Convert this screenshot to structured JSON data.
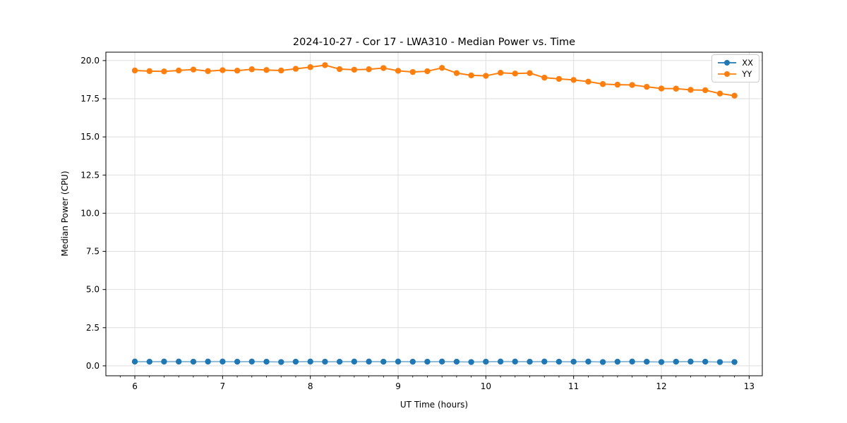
{
  "chart_data": {
    "type": "line",
    "title": "2024-10-27 - Cor 17 - LWA310 - Median Power vs. Time",
    "xlabel": "UT Time (hours)",
    "ylabel": "Median Power (CPU)",
    "xlim": [
      5.67,
      13.15
    ],
    "ylim": [
      -0.65,
      20.55
    ],
    "xticks": [
      6,
      7,
      8,
      9,
      10,
      11,
      12,
      13
    ],
    "xtick_labels": [
      "6",
      "7",
      "8",
      "9",
      "10",
      "11",
      "12",
      "13"
    ],
    "yticks": [
      0,
      2.5,
      5,
      7.5,
      10,
      12.5,
      15,
      17.5,
      20
    ],
    "ytick_labels": [
      "0.0",
      "2.5",
      "5.0",
      "7.5",
      "10.0",
      "12.5",
      "15.0",
      "17.5",
      "20.0"
    ],
    "x_minor_step": 0.166667,
    "grid": true,
    "grid_color": "#dedede",
    "legend": {
      "position": "upper right",
      "entries": [
        "XX",
        "YY"
      ]
    },
    "x": [
      6.0,
      6.167,
      6.333,
      6.5,
      6.667,
      6.833,
      7.0,
      7.167,
      7.333,
      7.5,
      7.667,
      7.833,
      8.0,
      8.167,
      8.333,
      8.5,
      8.667,
      8.833,
      9.0,
      9.167,
      9.333,
      9.5,
      9.667,
      9.833,
      10.0,
      10.167,
      10.333,
      10.5,
      10.667,
      10.833,
      11.0,
      11.167,
      11.333,
      11.5,
      11.667,
      11.833,
      12.0,
      12.167,
      12.333,
      12.5,
      12.667,
      12.833
    ],
    "series": [
      {
        "name": "XX",
        "color": "#1f77b4",
        "line_opacity": 0.5,
        "values": [
          0.28,
          0.27,
          0.28,
          0.28,
          0.27,
          0.28,
          0.28,
          0.27,
          0.28,
          0.27,
          0.25,
          0.27,
          0.28,
          0.27,
          0.27,
          0.28,
          0.28,
          0.27,
          0.28,
          0.27,
          0.27,
          0.28,
          0.27,
          0.25,
          0.27,
          0.28,
          0.28,
          0.27,
          0.28,
          0.27,
          0.27,
          0.28,
          0.25,
          0.27,
          0.28,
          0.27,
          0.25,
          0.27,
          0.28,
          0.27,
          0.25,
          0.25
        ]
      },
      {
        "name": "YY",
        "color": "#ff7f0e",
        "line_opacity": 1,
        "values": [
          19.35,
          19.31,
          19.29,
          19.35,
          19.41,
          19.31,
          19.37,
          19.34,
          19.43,
          19.38,
          19.35,
          19.46,
          19.57,
          19.7,
          19.44,
          19.4,
          19.43,
          19.51,
          19.33,
          19.25,
          19.3,
          19.52,
          19.18,
          19.03,
          19.0,
          19.2,
          19.15,
          19.18,
          18.88,
          18.8,
          18.73,
          18.62,
          18.46,
          18.42,
          18.4,
          18.28,
          18.17,
          18.16,
          18.08,
          18.06,
          17.84,
          17.7
        ]
      }
    ]
  }
}
